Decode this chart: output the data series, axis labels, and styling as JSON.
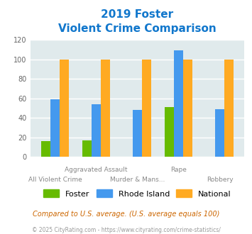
{
  "title_line1": "2019 Foster",
  "title_line2": "Violent Crime Comparison",
  "categories": [
    "All Violent Crime",
    "Aggravated Assault",
    "Murder & Mans...",
    "Rape",
    "Robbery"
  ],
  "foster": [
    16,
    17,
    0,
    51,
    0
  ],
  "rhode_island": [
    59,
    54,
    48,
    109,
    49
  ],
  "national": [
    100,
    100,
    100,
    100,
    100
  ],
  "foster_color": "#66bb00",
  "rhode_island_color": "#4499ee",
  "national_color": "#ffaa22",
  "title_color": "#1177cc",
  "bg_color": "#e0eaec",
  "ylim": [
    0,
    120
  ],
  "yticks": [
    0,
    20,
    40,
    60,
    80,
    100,
    120
  ],
  "xlabel_top": [
    "",
    "Aggravated Assault",
    "",
    "Rape",
    ""
  ],
  "xlabel_bottom": [
    "All Violent Crime",
    "",
    "Murder & Mans...",
    "",
    "Robbery"
  ],
  "footer_note": "Compared to U.S. average. (U.S. average equals 100)",
  "footer_copy": "© 2025 CityRating.com - https://www.cityrating.com/crime-statistics/",
  "legend_labels": [
    "Foster",
    "Rhode Island",
    "National"
  ]
}
